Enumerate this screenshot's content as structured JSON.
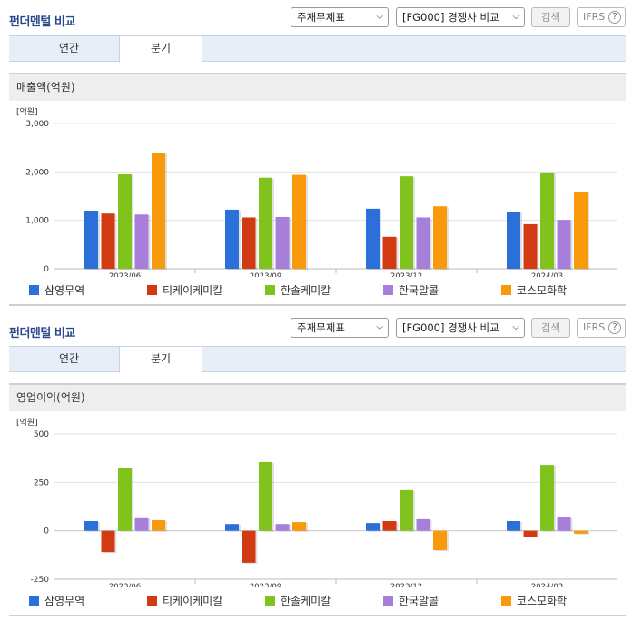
{
  "colors": {
    "series": [
      "#2b6fd9",
      "#d23a14",
      "#7fc31c",
      "#a77fdb",
      "#f99a0d"
    ]
  },
  "sections": [
    {
      "title": "펀더멘털 비교",
      "select1": "주재무제표",
      "select2": "[FG000] 경쟁사 비교",
      "search_label": "검색",
      "ifrs_label": "IFRS",
      "help_label": "?",
      "tabs": [
        {
          "label": "연간"
        },
        {
          "label": "분기"
        }
      ],
      "active_tab": 1,
      "subheader": "매출액(억원)"
    },
    {
      "title": "펀더멘털 비교",
      "select1": "주재무제표",
      "select2": "[FG000] 경쟁사 비교",
      "search_label": "검색",
      "ifrs_label": "IFRS",
      "help_label": "?",
      "tabs": [
        {
          "label": "연간"
        },
        {
          "label": "분기"
        }
      ],
      "active_tab": 1,
      "subheader": "영업이익(억원)"
    }
  ],
  "chart_data": [
    {
      "type": "bar",
      "title": "매출액(억원)",
      "unit_label": "[억원]",
      "categories": [
        "2023/06",
        "2023/09",
        "2023/12",
        "2024/03"
      ],
      "yticks": [
        "3,000",
        "2,000",
        "1,000",
        "0"
      ],
      "ylim": [
        0,
        3000
      ],
      "legend_position": "bottom",
      "series": [
        {
          "name": "삼영무역",
          "values": [
            1200,
            1220,
            1240,
            1180
          ]
        },
        {
          "name": "티케이케미칼",
          "values": [
            1140,
            1060,
            660,
            920
          ]
        },
        {
          "name": "한솔케미칼",
          "values": [
            1950,
            1880,
            1910,
            1990
          ]
        },
        {
          "name": "한국알콜",
          "values": [
            1120,
            1070,
            1060,
            1010
          ]
        },
        {
          "name": "코스모화학",
          "values": [
            2390,
            1940,
            1290,
            1590
          ]
        }
      ]
    },
    {
      "type": "bar",
      "title": "영업이익(억원)",
      "unit_label": "[억원]",
      "categories": [
        "2023/06",
        "2023/09",
        "2023/12",
        "2024/03"
      ],
      "yticks": [
        "500",
        "250",
        "0",
        "-250"
      ],
      "ylim": [
        -250,
        500
      ],
      "legend_position": "bottom",
      "series": [
        {
          "name": "삼영무역",
          "values": [
            50,
            35,
            40,
            50
          ]
        },
        {
          "name": "티케이케미칼",
          "values": [
            -110,
            -165,
            50,
            -30
          ]
        },
        {
          "name": "한솔케미칼",
          "values": [
            325,
            355,
            210,
            340
          ]
        },
        {
          "name": "한국알콜",
          "values": [
            65,
            35,
            60,
            70
          ]
        },
        {
          "name": "코스모화학",
          "values": [
            55,
            45,
            -100,
            -15
          ]
        }
      ]
    }
  ]
}
